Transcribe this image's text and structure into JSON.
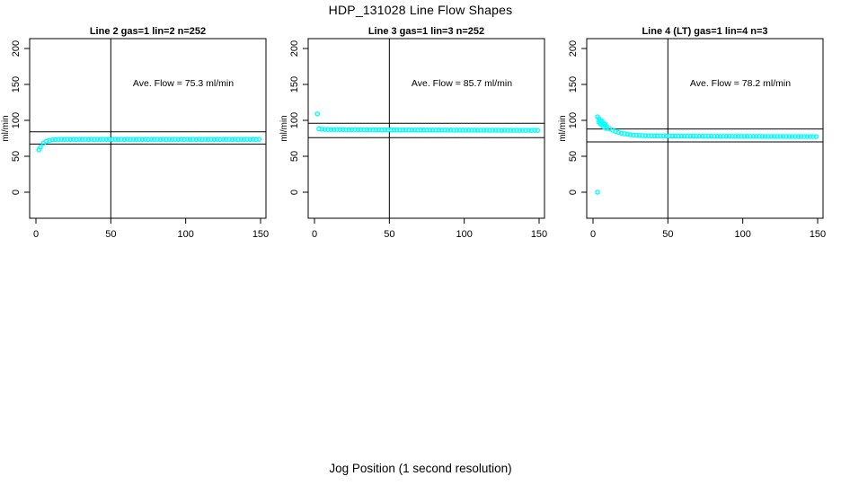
{
  "figure": {
    "title": "HDP_131028  Line Flow Shapes",
    "xlabel": "Jog Position (1 second resolution)",
    "marker_color": "#00FFFF",
    "axis_color": "#000000"
  },
  "chart_data": [
    {
      "type": "scatter",
      "title": "Line 2 gas=1 lin=2 n=252",
      "annotation": "Ave. Flow =  75.3  ml/min",
      "ave_flow_ml_min": 75.3,
      "ylabel": "ml/min",
      "xticks": [
        0,
        50,
        100,
        150
      ],
      "yticks": [
        0,
        50,
        100,
        150,
        200
      ],
      "xlim": [
        -6,
        156
      ],
      "ylim": [
        -36,
        214
      ],
      "vline_x": 50,
      "hlines": [
        84,
        67
      ],
      "grid": false,
      "marker": "open-circle",
      "outlier_points": [
        [
          2,
          59
        ]
      ],
      "points": [
        [
          3,
          62.7
        ],
        [
          5,
          68.2
        ],
        [
          7,
          70.9
        ],
        [
          9,
          72.2
        ],
        [
          11,
          72.9
        ],
        [
          13,
          73.2
        ],
        [
          15,
          73.3
        ],
        [
          17,
          73.5
        ],
        [
          19,
          73.2
        ],
        [
          21,
          73.6
        ],
        [
          23,
          73.3
        ],
        [
          25,
          73.5
        ],
        [
          27,
          73.2
        ],
        [
          29,
          73.6
        ],
        [
          31,
          73.3
        ],
        [
          33,
          73.5
        ],
        [
          35,
          73.2
        ],
        [
          37,
          73.6
        ],
        [
          39,
          73.3
        ],
        [
          41,
          73.5
        ],
        [
          43,
          73.2
        ],
        [
          45,
          73.6
        ],
        [
          47,
          73.3
        ],
        [
          49,
          73.5
        ],
        [
          51,
          73.2
        ],
        [
          53,
          73.6
        ],
        [
          55,
          73.3
        ],
        [
          57,
          73.5
        ],
        [
          59,
          73.2
        ],
        [
          61,
          73.6
        ],
        [
          63,
          73.3
        ],
        [
          65,
          73.5
        ],
        [
          67,
          73.2
        ],
        [
          69,
          73.6
        ],
        [
          71,
          73.3
        ],
        [
          73,
          73.5
        ],
        [
          75,
          73.2
        ],
        [
          77,
          73.6
        ],
        [
          79,
          73.3
        ],
        [
          81,
          73.5
        ],
        [
          83,
          73.2
        ],
        [
          85,
          73.6
        ],
        [
          87,
          73.3
        ],
        [
          89,
          73.5
        ],
        [
          91,
          73.2
        ],
        [
          93,
          73.6
        ],
        [
          95,
          73.3
        ],
        [
          97,
          73.5
        ],
        [
          99,
          73.2
        ],
        [
          101,
          73.6
        ],
        [
          103,
          73.3
        ],
        [
          105,
          73.5
        ],
        [
          107,
          73.2
        ],
        [
          109,
          73.6
        ],
        [
          111,
          73.3
        ],
        [
          113,
          73.5
        ],
        [
          115,
          73.2
        ],
        [
          117,
          73.6
        ],
        [
          119,
          73.3
        ],
        [
          121,
          73.5
        ],
        [
          123,
          73.2
        ],
        [
          125,
          73.6
        ],
        [
          127,
          73.3
        ],
        [
          129,
          73.5
        ],
        [
          131,
          73.2
        ],
        [
          133,
          73.6
        ],
        [
          135,
          73.3
        ],
        [
          137,
          73.5
        ],
        [
          139,
          73.2
        ],
        [
          141,
          73.6
        ],
        [
          143,
          73.3
        ],
        [
          145,
          73.5
        ],
        [
          147,
          73.2
        ],
        [
          149,
          73.6
        ]
      ]
    },
    {
      "type": "scatter",
      "title": "Line 3 gas=1 lin=3 n=252",
      "annotation": "Ave. Flow =  85.7  ml/min",
      "ave_flow_ml_min": 85.7,
      "ylabel": "ml/min",
      "xticks": [
        0,
        50,
        100,
        150
      ],
      "yticks": [
        0,
        50,
        100,
        150,
        200
      ],
      "xlim": [
        -6,
        156
      ],
      "ylim": [
        -36,
        214
      ],
      "vline_x": 50,
      "hlines": [
        96,
        76
      ],
      "grid": false,
      "marker": "open-circle",
      "outlier_points": [
        [
          2,
          109
        ]
      ],
      "points": [
        [
          3,
          88.3
        ],
        [
          5,
          87.6
        ],
        [
          7,
          87.4
        ],
        [
          9,
          87.3
        ],
        [
          11,
          87.3
        ],
        [
          13,
          87.2
        ],
        [
          15,
          87.3
        ],
        [
          17,
          87.1
        ],
        [
          19,
          87.2
        ],
        [
          21,
          87.0
        ],
        [
          23,
          87.2
        ],
        [
          25,
          87.0
        ],
        [
          27,
          87.1
        ],
        [
          29,
          86.9
        ],
        [
          31,
          87.1
        ],
        [
          33,
          86.9
        ],
        [
          35,
          87.0
        ],
        [
          37,
          86.9
        ],
        [
          39,
          87.0
        ],
        [
          41,
          86.8
        ],
        [
          43,
          87.0
        ],
        [
          45,
          86.8
        ],
        [
          47,
          86.9
        ],
        [
          49,
          86.8
        ],
        [
          51,
          86.9
        ],
        [
          53,
          86.7
        ],
        [
          55,
          86.9
        ],
        [
          57,
          86.7
        ],
        [
          59,
          86.8
        ],
        [
          61,
          86.7
        ],
        [
          63,
          86.8
        ],
        [
          65,
          86.6
        ],
        [
          67,
          86.8
        ],
        [
          69,
          86.6
        ],
        [
          71,
          86.7
        ],
        [
          73,
          86.6
        ],
        [
          75,
          86.7
        ],
        [
          77,
          86.5
        ],
        [
          79,
          86.7
        ],
        [
          81,
          86.5
        ],
        [
          83,
          86.6
        ],
        [
          85,
          86.5
        ],
        [
          87,
          86.6
        ],
        [
          89,
          86.4
        ],
        [
          91,
          86.6
        ],
        [
          93,
          86.4
        ],
        [
          95,
          86.5
        ],
        [
          97,
          86.4
        ],
        [
          99,
          86.5
        ],
        [
          101,
          86.3
        ],
        [
          103,
          86.5
        ],
        [
          105,
          86.3
        ],
        [
          107,
          86.4
        ],
        [
          109,
          86.3
        ],
        [
          111,
          86.4
        ],
        [
          113,
          86.2
        ],
        [
          115,
          86.4
        ],
        [
          117,
          86.2
        ],
        [
          119,
          86.3
        ],
        [
          121,
          86.2
        ],
        [
          123,
          86.3
        ],
        [
          125,
          86.1
        ],
        [
          127,
          86.3
        ],
        [
          129,
          86.1
        ],
        [
          131,
          86.2
        ],
        [
          133,
          86.1
        ],
        [
          135,
          86.2
        ],
        [
          137,
          86.0
        ],
        [
          139,
          86.2
        ],
        [
          141,
          86.0
        ],
        [
          143,
          86.1
        ],
        [
          145,
          86.0
        ],
        [
          147,
          86.1
        ],
        [
          149,
          86.0
        ]
      ]
    },
    {
      "type": "scatter",
      "title": "Line 4 (LT) gas=1 lin=4 n=3",
      "annotation": "Ave. Flow =  78.2  ml/min",
      "ave_flow_ml_min": 78.2,
      "ylabel": "ml/min",
      "xticks": [
        0,
        50,
        100,
        150
      ],
      "yticks": [
        0,
        50,
        100,
        150,
        200
      ],
      "xlim": [
        -6,
        156
      ],
      "ylim": [
        -36,
        214
      ],
      "vline_x": 50,
      "hlines": [
        88,
        70
      ],
      "grid": false,
      "marker": "open-circle",
      "outlier_points": [
        [
          3,
          0
        ]
      ],
      "points": [
        [
          3,
          105
        ],
        [
          4,
          102
        ],
        [
          4,
          97.5
        ],
        [
          5,
          99.3
        ],
        [
          5,
          95
        ],
        [
          6,
          99
        ],
        [
          6,
          93.5
        ],
        [
          7,
          94.9
        ],
        [
          7,
          91
        ],
        [
          8,
          95
        ],
        [
          9,
          91.3
        ],
        [
          9,
          88.5
        ],
        [
          11,
          88.5
        ],
        [
          13,
          86.3
        ],
        [
          15,
          84.6
        ],
        [
          17,
          83.2
        ],
        [
          19,
          82.1
        ],
        [
          21,
          81.3
        ],
        [
          23,
          80.6
        ],
        [
          25,
          80.0
        ],
        [
          27,
          79.6
        ],
        [
          29,
          79.3
        ],
        [
          31,
          79.0
        ],
        [
          33,
          78.8
        ],
        [
          35,
          78.6
        ],
        [
          37,
          78.5
        ],
        [
          39,
          78.4
        ],
        [
          41,
          78.3
        ],
        [
          43,
          78.3
        ],
        [
          45,
          78.2
        ],
        [
          47,
          78.2
        ],
        [
          49,
          78.1
        ],
        [
          51,
          78.1
        ],
        [
          53,
          78.0
        ],
        [
          55,
          78.1
        ],
        [
          57,
          78.0
        ],
        [
          59,
          78.0
        ],
        [
          61,
          77.9
        ],
        [
          63,
          78.0
        ],
        [
          65,
          77.9
        ],
        [
          67,
          78.0
        ],
        [
          69,
          77.9
        ],
        [
          71,
          77.9
        ],
        [
          73,
          77.8
        ],
        [
          75,
          77.9
        ],
        [
          77,
          77.8
        ],
        [
          79,
          77.9
        ],
        [
          81,
          77.8
        ],
        [
          83,
          77.8
        ],
        [
          85,
          77.7
        ],
        [
          87,
          77.8
        ],
        [
          89,
          77.7
        ],
        [
          91,
          77.8
        ],
        [
          93,
          77.7
        ],
        [
          95,
          77.8
        ],
        [
          97,
          77.7
        ],
        [
          99,
          77.7
        ],
        [
          101,
          77.6
        ],
        [
          103,
          77.7
        ],
        [
          105,
          77.6
        ],
        [
          107,
          77.7
        ],
        [
          109,
          77.6
        ],
        [
          111,
          77.7
        ],
        [
          113,
          77.6
        ],
        [
          115,
          77.6
        ],
        [
          117,
          77.5
        ],
        [
          119,
          77.6
        ],
        [
          121,
          77.5
        ],
        [
          123,
          77.6
        ],
        [
          125,
          77.5
        ],
        [
          127,
          77.6
        ],
        [
          129,
          77.5
        ],
        [
          131,
          77.5
        ],
        [
          133,
          77.4
        ],
        [
          135,
          77.5
        ],
        [
          137,
          77.4
        ],
        [
          139,
          77.5
        ],
        [
          141,
          77.4
        ],
        [
          143,
          77.5
        ],
        [
          145,
          77.4
        ],
        [
          147,
          77.4
        ],
        [
          149,
          77.3
        ]
      ]
    }
  ]
}
